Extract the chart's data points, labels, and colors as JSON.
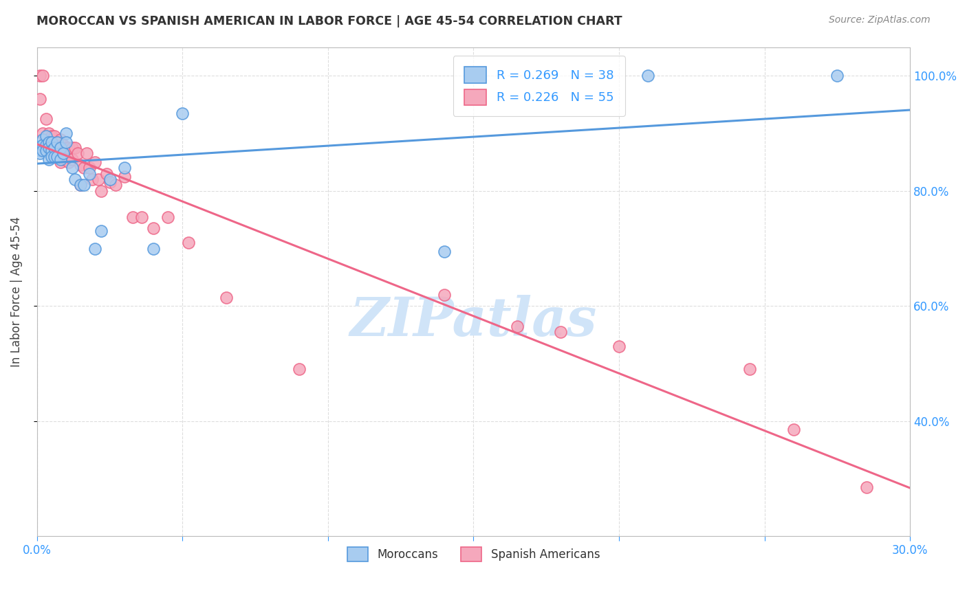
{
  "title": "MOROCCAN VS SPANISH AMERICAN IN LABOR FORCE | AGE 45-54 CORRELATION CHART",
  "source": "Source: ZipAtlas.com",
  "ylabel": "In Labor Force | Age 45-54",
  "x_min": 0.0,
  "x_max": 0.3,
  "y_min": 0.2,
  "y_max": 1.05,
  "x_ticks": [
    0.0,
    0.05,
    0.1,
    0.15,
    0.2,
    0.25,
    0.3
  ],
  "x_tick_labels": [
    "0.0%",
    "",
    "",
    "",
    "",
    "",
    "30.0%"
  ],
  "y_ticks": [
    0.4,
    0.6,
    0.8,
    1.0
  ],
  "y_tick_labels": [
    "40.0%",
    "60.0%",
    "80.0%",
    "100.0%"
  ],
  "moroccan_R": 0.269,
  "moroccan_N": 38,
  "spanish_R": 0.226,
  "spanish_N": 55,
  "moroccan_color": "#A8CCF0",
  "spanish_color": "#F5A8BC",
  "moroccan_line_color": "#5599DD",
  "spanish_line_color": "#EE6688",
  "watermark": "ZIPatlas",
  "watermark_color": "#D0E4F8",
  "moroccan_x": [
    0.001,
    0.001,
    0.001,
    0.002,
    0.002,
    0.002,
    0.003,
    0.003,
    0.003,
    0.004,
    0.004,
    0.004,
    0.005,
    0.005,
    0.005,
    0.006,
    0.006,
    0.007,
    0.007,
    0.008,
    0.008,
    0.009,
    0.01,
    0.01,
    0.012,
    0.013,
    0.015,
    0.016,
    0.018,
    0.02,
    0.022,
    0.025,
    0.03,
    0.04,
    0.05,
    0.14,
    0.21,
    0.275
  ],
  "moroccan_y": [
    0.875,
    0.87,
    0.865,
    0.89,
    0.88,
    0.87,
    0.895,
    0.88,
    0.87,
    0.885,
    0.875,
    0.855,
    0.885,
    0.87,
    0.86,
    0.875,
    0.86,
    0.885,
    0.86,
    0.875,
    0.855,
    0.865,
    0.9,
    0.885,
    0.84,
    0.82,
    0.81,
    0.81,
    0.83,
    0.7,
    0.73,
    0.82,
    0.84,
    0.7,
    0.935,
    0.695,
    1.0,
    1.0
  ],
  "spanish_x": [
    0.001,
    0.001,
    0.002,
    0.002,
    0.003,
    0.003,
    0.003,
    0.004,
    0.004,
    0.005,
    0.005,
    0.006,
    0.006,
    0.007,
    0.007,
    0.008,
    0.008,
    0.008,
    0.009,
    0.009,
    0.01,
    0.01,
    0.011,
    0.011,
    0.012,
    0.012,
    0.013,
    0.014,
    0.015,
    0.015,
    0.016,
    0.017,
    0.018,
    0.019,
    0.02,
    0.021,
    0.022,
    0.024,
    0.025,
    0.027,
    0.03,
    0.033,
    0.036,
    0.04,
    0.045,
    0.052,
    0.065,
    0.09,
    0.14,
    0.165,
    0.18,
    0.2,
    0.245,
    0.26,
    0.285
  ],
  "spanish_y": [
    1.0,
    0.96,
    1.0,
    0.9,
    0.925,
    0.89,
    0.87,
    0.9,
    0.87,
    0.895,
    0.875,
    0.895,
    0.87,
    0.885,
    0.87,
    0.89,
    0.875,
    0.85,
    0.88,
    0.855,
    0.875,
    0.855,
    0.875,
    0.85,
    0.875,
    0.855,
    0.875,
    0.865,
    0.845,
    0.81,
    0.84,
    0.865,
    0.84,
    0.82,
    0.85,
    0.82,
    0.8,
    0.83,
    0.815,
    0.81,
    0.825,
    0.755,
    0.755,
    0.735,
    0.755,
    0.71,
    0.615,
    0.49,
    0.62,
    0.565,
    0.555,
    0.53,
    0.49,
    0.385,
    0.285
  ]
}
